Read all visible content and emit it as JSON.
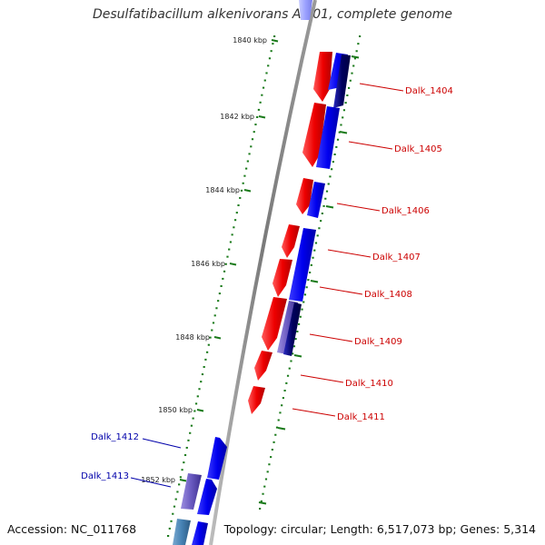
{
  "title": "Desulfatibacillum alkenivorans AK-01, complete genome",
  "accession_text": "Accession: NC_011768",
  "info_text": "Topology: circular; Length: 6,517,073 bp; Genes: 5,314",
  "colors": {
    "forward_strand": "#ee0000",
    "reverse_strand": "#0000ee",
    "backbone": "#888888",
    "tick": "#1a7a1a",
    "forward_label": "#cc0000",
    "reverse_label": "#0000aa"
  },
  "ticks": [
    {
      "label": "1840 kbp"
    },
    {
      "label": "1842 kbp"
    },
    {
      "label": "1844 kbp"
    },
    {
      "label": "1846 kbp"
    },
    {
      "label": "1848 kbp"
    },
    {
      "label": "1850 kbp"
    },
    {
      "label": "1852 kbp"
    }
  ],
  "gene_labels": [
    {
      "text": "Dalk_1404",
      "strand": "forward"
    },
    {
      "text": "Dalk_1405",
      "strand": "forward"
    },
    {
      "text": "Dalk_1406",
      "strand": "forward"
    },
    {
      "text": "Dalk_1407",
      "strand": "forward"
    },
    {
      "text": "Dalk_1408",
      "strand": "forward"
    },
    {
      "text": "Dalk_1409",
      "strand": "forward"
    },
    {
      "text": "Dalk_1410",
      "strand": "forward"
    },
    {
      "text": "Dalk_1411",
      "strand": "forward"
    },
    {
      "text": "Dalk_1412",
      "strand": "reverse"
    },
    {
      "text": "Dalk_1413",
      "strand": "reverse"
    }
  ]
}
